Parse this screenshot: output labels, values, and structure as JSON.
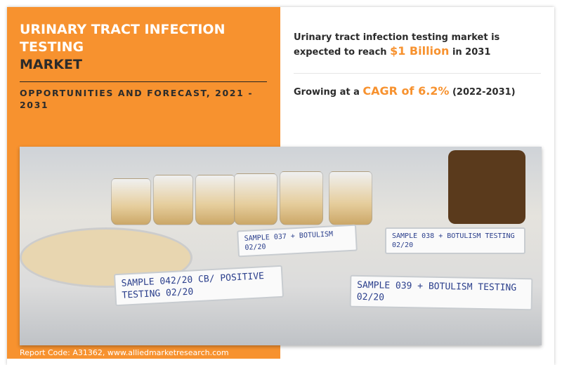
{
  "header": {
    "title_line1": "URINARY TRACT INFECTION TESTING",
    "title_line2": "MARKET",
    "subtitle": "OPPORTUNITIES AND FORECAST, 2021 - 2031"
  },
  "stats": [
    {
      "before": "Urinary tract infection testing market is expected to reach ",
      "highlight": "$1 Billion",
      "after": " in 2031"
    },
    {
      "before": "Growing at a ",
      "highlight": "CAGR of 6.2%",
      "after": " (2022-2031)"
    }
  ],
  "photo": {
    "labels": [
      "SAMPLE 042/20 CB/ POSITIVE TESTING 02/20",
      "SAMPLE 037 + BOTULISM 02/20",
      "SAMPLE 038 + BOTULISM TESTING 02/20",
      "SAMPLE 039 + BOTULISM TESTING 02/20"
    ]
  },
  "footer": {
    "text": "Report Code: A31362, www.alliedmarketresearch.com"
  },
  "colors": {
    "accent": "#f7922f",
    "dark_text": "#2b2b2b"
  }
}
